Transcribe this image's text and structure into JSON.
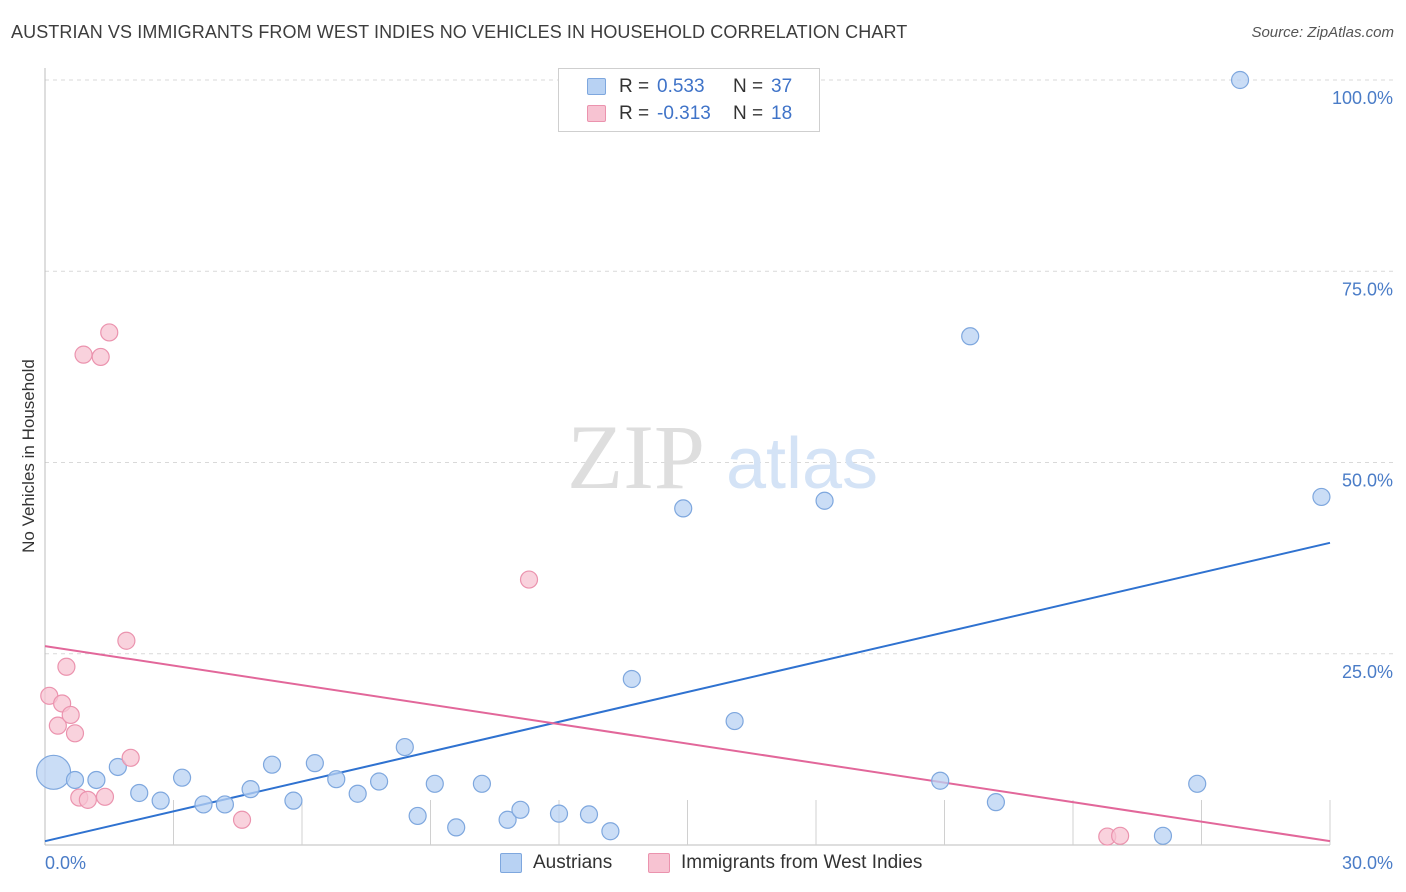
{
  "header": {
    "title": "AUSTRIAN VS IMMIGRANTS FROM WEST INDIES NO VEHICLES IN HOUSEHOLD CORRELATION CHART",
    "source": "Source: ZipAtlas.com"
  },
  "watermark": {
    "zip": "ZIP",
    "atlas": "atlas"
  },
  "legend": {
    "rows": [
      {
        "r_label": "R =",
        "r_value": "0.533",
        "n_label": "N =",
        "n_value": "37"
      },
      {
        "r_label": "R =",
        "r_value": "-0.313",
        "n_label": "N =",
        "n_value": "18"
      }
    ]
  },
  "bottom_legend": {
    "austrians": "Austrians",
    "west_indies": "Immigrants from West Indies"
  },
  "colors": {
    "austrians_fill": "#b8d2f3",
    "austrians_stroke": "#7ea7de",
    "austrians_line": "#2f72d0",
    "west_indies_fill": "#f7c3d2",
    "west_indies_stroke": "#eb93ae",
    "west_indies_line": "#e2679a",
    "grid": "#d9d9d9",
    "tick_text": "#4a7cc7"
  },
  "chart_data": {
    "type": "scatter",
    "title": "AUSTRIAN VS IMMIGRANTS FROM WEST INDIES NO VEHICLES IN HOUSEHOLD CORRELATION CHART",
    "xlabel": "",
    "ylabel": "No Vehicles in Household",
    "xlim": [
      0,
      30
    ],
    "ylim": [
      0,
      100
    ],
    "x_tick_labels": [
      "0.0%",
      "30.0%"
    ],
    "y_tick_labels": [
      "100.0%",
      "75.0%",
      "50.0%",
      "25.0%"
    ],
    "y_tick_values": [
      100,
      75,
      50,
      25
    ],
    "grid": true,
    "legend_position": "top-center",
    "series": [
      {
        "name": "Austrians",
        "r": 0.533,
        "n": 37,
        "trend": {
          "x": [
            0,
            30
          ],
          "y": [
            0.5,
            39.5
          ]
        },
        "points": [
          {
            "x": 0.2,
            "y": 9.5,
            "big": true
          },
          {
            "x": 0.7,
            "y": 8.5
          },
          {
            "x": 1.2,
            "y": 8.5
          },
          {
            "x": 1.7,
            "y": 10.2
          },
          {
            "x": 2.2,
            "y": 6.8
          },
          {
            "x": 2.7,
            "y": 5.8
          },
          {
            "x": 3.2,
            "y": 8.8
          },
          {
            "x": 3.7,
            "y": 5.3
          },
          {
            "x": 4.2,
            "y": 5.3
          },
          {
            "x": 4.8,
            "y": 7.3
          },
          {
            "x": 5.3,
            "y": 10.5
          },
          {
            "x": 5.8,
            "y": 5.8
          },
          {
            "x": 6.3,
            "y": 10.7
          },
          {
            "x": 6.8,
            "y": 8.6
          },
          {
            "x": 7.3,
            "y": 6.7
          },
          {
            "x": 7.8,
            "y": 8.3
          },
          {
            "x": 8.4,
            "y": 12.8
          },
          {
            "x": 8.7,
            "y": 3.8
          },
          {
            "x": 9.1,
            "y": 8.0
          },
          {
            "x": 9.6,
            "y": 2.3
          },
          {
            "x": 10.2,
            "y": 8.0
          },
          {
            "x": 10.8,
            "y": 3.3
          },
          {
            "x": 11.1,
            "y": 4.6
          },
          {
            "x": 12.0,
            "y": 4.1
          },
          {
            "x": 12.7,
            "y": 4.0
          },
          {
            "x": 13.2,
            "y": 1.8
          },
          {
            "x": 13.7,
            "y": 21.7
          },
          {
            "x": 14.9,
            "y": 44.0
          },
          {
            "x": 16.1,
            "y": 16.2
          },
          {
            "x": 18.2,
            "y": 45.0
          },
          {
            "x": 20.9,
            "y": 8.4
          },
          {
            "x": 21.6,
            "y": 66.5
          },
          {
            "x": 22.2,
            "y": 5.6
          },
          {
            "x": 26.1,
            "y": 1.2
          },
          {
            "x": 26.9,
            "y": 8.0
          },
          {
            "x": 27.9,
            "y": 100.0
          },
          {
            "x": 29.8,
            "y": 45.5
          }
        ]
      },
      {
        "name": "Immigrants from West Indies",
        "r": -0.313,
        "n": 18,
        "trend": {
          "x": [
            0,
            30
          ],
          "y": [
            26.0,
            0.5
          ]
        },
        "points": [
          {
            "x": 0.1,
            "y": 19.5
          },
          {
            "x": 0.3,
            "y": 15.6
          },
          {
            "x": 0.4,
            "y": 18.5
          },
          {
            "x": 0.5,
            "y": 23.3
          },
          {
            "x": 0.6,
            "y": 17.0
          },
          {
            "x": 0.7,
            "y": 14.6
          },
          {
            "x": 0.8,
            "y": 6.2
          },
          {
            "x": 0.9,
            "y": 64.1
          },
          {
            "x": 1.0,
            "y": 5.9
          },
          {
            "x": 1.3,
            "y": 63.8
          },
          {
            "x": 1.4,
            "y": 6.3
          },
          {
            "x": 1.5,
            "y": 67.0
          },
          {
            "x": 1.9,
            "y": 26.7
          },
          {
            "x": 2.0,
            "y": 11.4
          },
          {
            "x": 4.6,
            "y": 3.3
          },
          {
            "x": 11.3,
            "y": 34.7
          },
          {
            "x": 24.8,
            "y": 1.1
          },
          {
            "x": 25.1,
            "y": 1.2
          }
        ]
      }
    ]
  }
}
